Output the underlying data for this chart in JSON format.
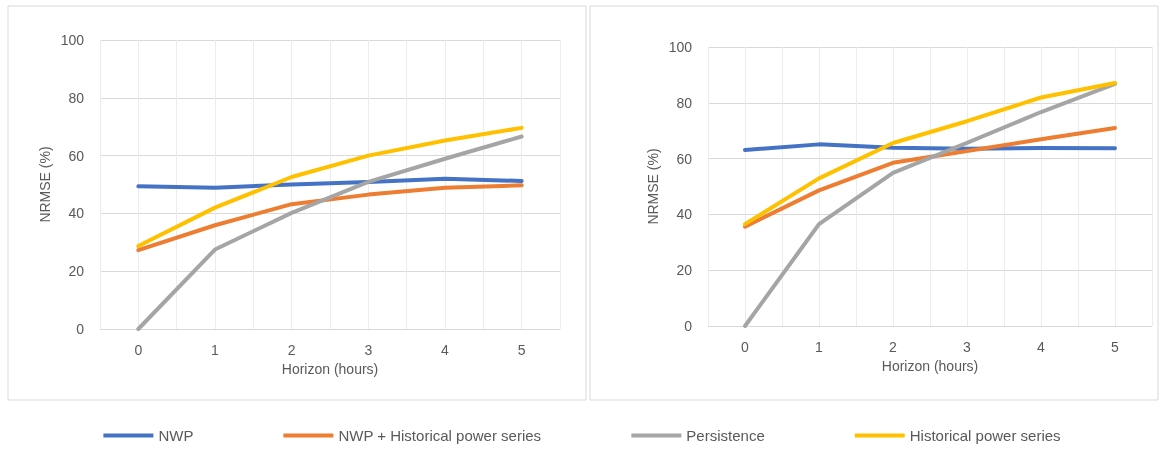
{
  "chart_data": [
    {
      "type": "line",
      "xlabel": "Horizon (hours)",
      "ylabel": "NRMSE (%)",
      "x": [
        0,
        1,
        2,
        3,
        4,
        5
      ],
      "xlim": [
        -0.5,
        5.5
      ],
      "xticks": [
        {
          "value": -0.5,
          "label": null
        },
        0,
        {
          "value": 0.5,
          "label": null
        },
        1,
        {
          "value": 1.5,
          "label": null
        },
        2,
        {
          "value": 2.5,
          "label": null
        },
        3,
        {
          "value": 3.5,
          "label": null
        },
        4,
        {
          "value": 4.5,
          "label": null
        },
        5,
        {
          "value": 5.5,
          "label": null
        }
      ],
      "ylim": [
        0,
        100
      ],
      "yticks": [
        0,
        20,
        40,
        60,
        80,
        100
      ],
      "grid": true,
      "legend": "bottom",
      "marker": "none",
      "line_style": "solid",
      "series": [
        {
          "name": "NWP",
          "color": "#4472c4",
          "values": [
            49.4,
            48.9,
            50,
            50.9,
            52,
            51.2
          ]
        },
        {
          "name": "NWP + Historical power series",
          "color": "#ed7d31",
          "values": [
            27.3,
            35.9,
            43.2,
            46.5,
            48.9,
            49.7
          ]
        },
        {
          "name": "Persistence",
          "color": "#a5a5a5",
          "values": [
            0,
            27.5,
            40.2,
            50.9,
            58.9,
            66.6
          ]
        },
        {
          "name": "Historical power series",
          "color": "#ffc000",
          "values": [
            28.7,
            42,
            52.6,
            60,
            65.2,
            69.6
          ]
        }
      ]
    },
    {
      "type": "line",
      "xlabel": "Horizon (hours)",
      "ylabel": "NRMSE (%)",
      "x": [
        0,
        1,
        2,
        3,
        4,
        5
      ],
      "xlim": [
        -0.5,
        5.5
      ],
      "xticks": [
        {
          "value": -0.5,
          "label": null
        },
        0,
        {
          "value": 0.5,
          "label": null
        },
        1,
        {
          "value": 1.5,
          "label": null
        },
        2,
        {
          "value": 2.5,
          "label": null
        },
        3,
        {
          "value": 3.5,
          "label": null
        },
        4,
        {
          "value": 4.5,
          "label": null
        },
        5,
        {
          "value": 5.5,
          "label": null
        }
      ],
      "ylim": [
        0,
        100
      ],
      "yticks": [
        0,
        20,
        40,
        60,
        80,
        100
      ],
      "grid": true,
      "legend": "bottom",
      "marker": "none",
      "line_style": "solid",
      "series": [
        {
          "name": "NWP",
          "color": "#4472c4",
          "values": [
            63.1,
            65.1,
            63.9,
            63.5,
            63.8,
            63.7
          ]
        },
        {
          "name": "NWP + Historical power series",
          "color": "#ed7d31",
          "values": [
            35.6,
            48.6,
            58.5,
            62.7,
            66.9,
            71
          ]
        },
        {
          "name": "Persistence",
          "color": "#a5a5a5",
          "values": [
            0,
            36.5,
            54.9,
            65.6,
            76.7,
            86.8
          ]
        },
        {
          "name": "Historical power series",
          "color": "#ffc000",
          "values": [
            36.5,
            52.9,
            65.6,
            73.4,
            81.9,
            87.1
          ]
        }
      ]
    }
  ]
}
